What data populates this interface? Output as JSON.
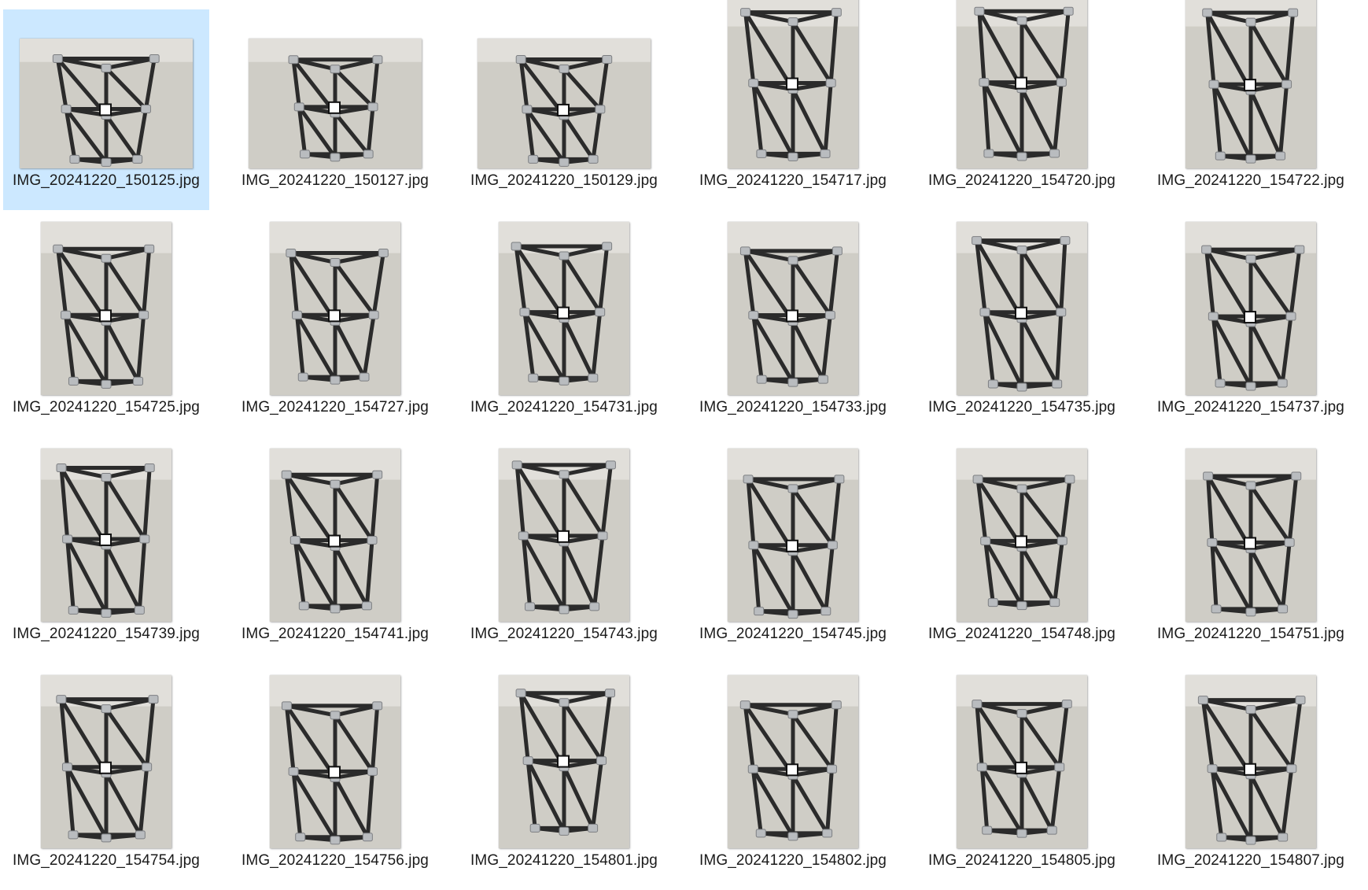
{
  "files": [
    {
      "name": "IMG_20241220_150125.jpg",
      "orientation": "landscape",
      "selected": true
    },
    {
      "name": "IMG_20241220_150127.jpg",
      "orientation": "landscape",
      "selected": false
    },
    {
      "name": "IMG_20241220_150129.jpg",
      "orientation": "landscape",
      "selected": false
    },
    {
      "name": "IMG_20241220_154717.jpg",
      "orientation": "portrait",
      "selected": false
    },
    {
      "name": "IMG_20241220_154720.jpg",
      "orientation": "portrait",
      "selected": false
    },
    {
      "name": "IMG_20241220_154722.jpg",
      "orientation": "portrait",
      "selected": false
    },
    {
      "name": "IMG_20241220_154725.jpg",
      "orientation": "portrait",
      "selected": false
    },
    {
      "name": "IMG_20241220_154727.jpg",
      "orientation": "portrait",
      "selected": false
    },
    {
      "name": "IMG_20241220_154731.jpg",
      "orientation": "portrait",
      "selected": false
    },
    {
      "name": "IMG_20241220_154733.jpg",
      "orientation": "portrait",
      "selected": false
    },
    {
      "name": "IMG_20241220_154735.jpg",
      "orientation": "portrait",
      "selected": false
    },
    {
      "name": "IMG_20241220_154737.jpg",
      "orientation": "portrait",
      "selected": false
    },
    {
      "name": "IMG_20241220_154739.jpg",
      "orientation": "portrait",
      "selected": false
    },
    {
      "name": "IMG_20241220_154741.jpg",
      "orientation": "portrait",
      "selected": false
    },
    {
      "name": "IMG_20241220_154743.jpg",
      "orientation": "portrait",
      "selected": false
    },
    {
      "name": "IMG_20241220_154745.jpg",
      "orientation": "portrait",
      "selected": false
    },
    {
      "name": "IMG_20241220_154748.jpg",
      "orientation": "portrait",
      "selected": false
    },
    {
      "name": "IMG_20241220_154751.jpg",
      "orientation": "portrait",
      "selected": false
    },
    {
      "name": "IMG_20241220_154754.jpg",
      "orientation": "portrait",
      "selected": false
    },
    {
      "name": "IMG_20241220_154756.jpg",
      "orientation": "portrait",
      "selected": false
    },
    {
      "name": "IMG_20241220_154801.jpg",
      "orientation": "portrait",
      "selected": false
    },
    {
      "name": "IMG_20241220_154802.jpg",
      "orientation": "portrait",
      "selected": false
    },
    {
      "name": "IMG_20241220_154805.jpg",
      "orientation": "portrait",
      "selected": false
    },
    {
      "name": "IMG_20241220_154807.jpg",
      "orientation": "portrait",
      "selected": false
    }
  ],
  "colors": {
    "selection": "#cce8ff",
    "floor": "#cfcdc6",
    "frame": "#2b2b2b",
    "joint": "#b9bcbf"
  }
}
